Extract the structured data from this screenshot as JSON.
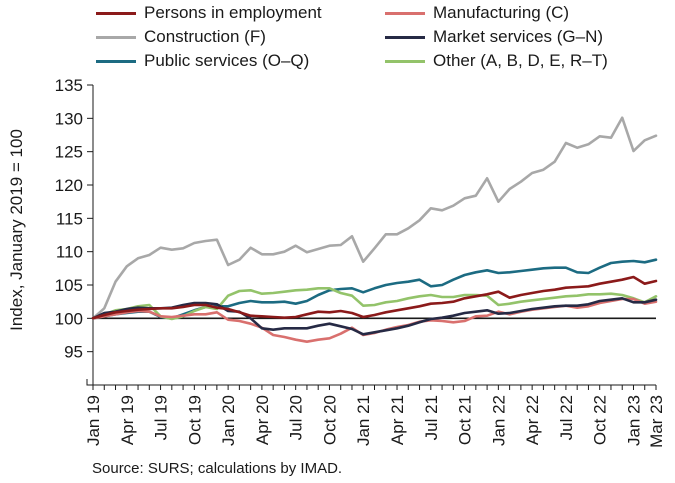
{
  "chart_data": {
    "type": "line",
    "title": "",
    "ylabel": "Index, January 2019 = 100",
    "xlabel": "",
    "ylim": [
      90,
      135
    ],
    "yticks": [
      95,
      100,
      105,
      110,
      115,
      120,
      125,
      130,
      135
    ],
    "grid": false,
    "legend_position": "top",
    "x_labels": [
      "Jan 19",
      "Apr 19",
      "Jul 19",
      "Oct 19",
      "Jan 20",
      "Apr 20",
      "Jul 20",
      "Oct 20",
      "Jan 21",
      "Apr 21",
      "Jul 21",
      "Oct 21",
      "Jan 22",
      "Apr 22",
      "Jul 22",
      "Oct 22",
      "Jan 23",
      "Mar 23"
    ],
    "x_label_index": [
      0,
      3,
      6,
      9,
      12,
      15,
      18,
      21,
      24,
      27,
      30,
      33,
      36,
      39,
      42,
      45,
      48,
      50
    ],
    "x": [
      "Jan 19",
      "Feb 19",
      "Mar 19",
      "Apr 19",
      "May 19",
      "Jun 19",
      "Jul 19",
      "Aug 19",
      "Sep 19",
      "Oct 19",
      "Nov 19",
      "Dec 19",
      "Jan 20",
      "Feb 20",
      "Mar 20",
      "Apr 20",
      "May 20",
      "Jun 20",
      "Jul 20",
      "Aug 20",
      "Sep 20",
      "Oct 20",
      "Nov 20",
      "Dec 20",
      "Jan 21",
      "Feb 21",
      "Mar 21",
      "Apr 21",
      "May 21",
      "Jun 21",
      "Jul 21",
      "Aug 21",
      "Sep 21",
      "Oct 21",
      "Nov 21",
      "Dec 21",
      "Jan 22",
      "Feb 22",
      "Mar 22",
      "Apr 22",
      "May 22",
      "Jun 22",
      "Jul 22",
      "Aug 22",
      "Sep 22",
      "Oct 22",
      "Nov 22",
      "Dec 22",
      "Jan 23",
      "Feb 23",
      "Mar 23"
    ],
    "reference_line": 100,
    "series": [
      {
        "name": "Persons in employment",
        "color": "#8b1a1a",
        "values": [
          100,
          100.5,
          100.9,
          101.1,
          101.3,
          101.4,
          101.5,
          101.5,
          101.7,
          102.0,
          102.0,
          101.6,
          101.4,
          100.9,
          100.4,
          100.3,
          100.2,
          100.1,
          100.2,
          100.6,
          101.0,
          100.9,
          101.1,
          100.8,
          100.2,
          100.5,
          100.9,
          101.2,
          101.5,
          101.8,
          102.2,
          102.3,
          102.5,
          103.0,
          103.3,
          103.6,
          104.0,
          103.1,
          103.5,
          103.8,
          104.1,
          104.3,
          104.6,
          104.7,
          104.8,
          105.2,
          105.5,
          105.8,
          106.2,
          105.2,
          105.6
        ]
      },
      {
        "name": "Manufacturing (C)",
        "color": "#d9706e",
        "values": [
          100,
          100.3,
          100.6,
          100.9,
          101.1,
          101.0,
          100.3,
          100.2,
          100.4,
          100.6,
          100.6,
          100.9,
          99.8,
          99.6,
          99.2,
          98.6,
          97.5,
          97.2,
          96.8,
          96.5,
          96.8,
          97.0,
          97.7,
          98.6,
          97.5,
          97.8,
          98.3,
          98.7,
          99.0,
          99.5,
          99.7,
          99.6,
          99.4,
          99.6,
          100.3,
          100.4,
          101.0,
          100.6,
          101.0,
          101.3,
          101.5,
          101.7,
          101.9,
          101.6,
          101.8,
          102.3,
          102.6,
          102.9,
          102.9,
          102.2,
          102.5
        ]
      },
      {
        "name": "Construction (F)",
        "color": "#a8a8a8",
        "values": [
          100,
          101.5,
          105.5,
          107.8,
          109.0,
          109.5,
          110.6,
          110.3,
          110.5,
          111.3,
          111.6,
          111.8,
          108.0,
          108.8,
          110.6,
          109.6,
          109.6,
          110.0,
          110.9,
          109.9,
          110.4,
          110.9,
          111.0,
          112.3,
          108.5,
          110.5,
          112.6,
          112.6,
          113.5,
          114.7,
          116.5,
          116.2,
          116.9,
          118.0,
          118.4,
          121.0,
          117.5,
          119.4,
          120.5,
          121.8,
          122.3,
          123.5,
          126.3,
          125.6,
          126.1,
          127.3,
          127.1,
          130.1,
          125.1,
          126.7,
          127.4
        ]
      },
      {
        "name": "Market services (G–N)",
        "color": "#262a45",
        "values": [
          100,
          100.8,
          101.0,
          101.4,
          101.6,
          101.5,
          101.5,
          101.6,
          102.0,
          102.3,
          102.3,
          102.1,
          101.1,
          101.0,
          100.0,
          98.5,
          98.3,
          98.5,
          98.5,
          98.5,
          98.9,
          99.2,
          98.8,
          98.4,
          97.6,
          97.9,
          98.2,
          98.5,
          98.9,
          99.4,
          99.9,
          100.1,
          100.4,
          100.8,
          101.0,
          101.2,
          100.7,
          100.8,
          101.1,
          101.4,
          101.6,
          101.8,
          101.9,
          101.9,
          102.1,
          102.6,
          102.8,
          103.0,
          102.4,
          102.4,
          102.8
        ]
      },
      {
        "name": "Public services (O–Q)",
        "color": "#1c6b82",
        "values": [
          100,
          100.3,
          100.6,
          100.8,
          101.0,
          101.0,
          100.2,
          100.0,
          100.6,
          101.2,
          101.7,
          101.8,
          101.8,
          102.3,
          102.6,
          102.4,
          102.4,
          102.5,
          102.2,
          102.6,
          103.5,
          104.2,
          104.4,
          104.5,
          103.9,
          104.5,
          105.0,
          105.3,
          105.5,
          105.8,
          104.8,
          105.0,
          105.8,
          106.5,
          106.9,
          107.2,
          106.8,
          106.9,
          107.1,
          107.3,
          107.5,
          107.6,
          107.6,
          106.9,
          106.8,
          107.6,
          108.3,
          108.5,
          108.6,
          108.4,
          108.8
        ]
      },
      {
        "name": "Other (A, B, D, E, R–T)",
        "color": "#93c36a",
        "values": [
          100,
          100.6,
          101.2,
          101.4,
          101.8,
          102.0,
          100.3,
          99.9,
          100.3,
          101.1,
          101.7,
          101.4,
          103.4,
          104.1,
          104.2,
          103.7,
          103.8,
          104.0,
          104.2,
          104.3,
          104.5,
          104.5,
          103.8,
          103.4,
          101.9,
          102.0,
          102.4,
          102.6,
          103.0,
          103.3,
          103.5,
          103.2,
          103.2,
          103.5,
          103.5,
          103.4,
          102.0,
          102.2,
          102.5,
          102.7,
          102.9,
          103.1,
          103.3,
          103.4,
          103.6,
          103.6,
          103.7,
          103.5,
          103.0,
          102.4,
          103.3
        ]
      }
    ]
  },
  "source": "Source: SURS; calculations by IMAD."
}
